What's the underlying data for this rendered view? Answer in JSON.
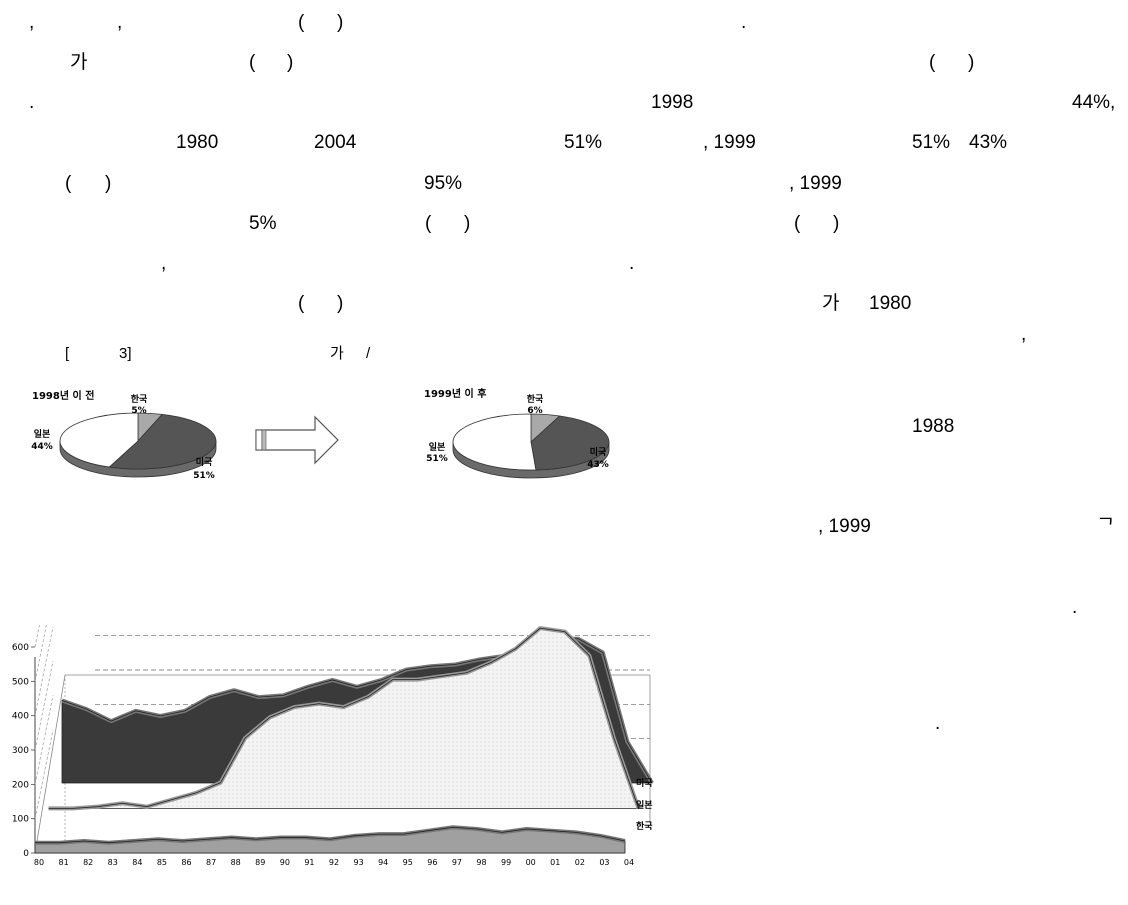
{
  "lines": [
    [
      ",",
      ",",
      "(",
      ")",
      "."
    ],
    [
      "가",
      "(",
      ")",
      "(",
      ")"
    ],
    [
      ".",
      "1998",
      "44%,"
    ],
    [
      "1980",
      "2004",
      "51%",
      ", 1999",
      "51%",
      "43%"
    ],
    [
      "(",
      ")",
      "95%",
      ", 1999"
    ],
    [
      "5%",
      "(",
      ")",
      "(",
      ")"
    ],
    [
      ",",
      "."
    ],
    [
      "(",
      ")",
      "가",
      "1980"
    ],
    [
      "[",
      "3]",
      "가",
      "/",
      ","
    ]
  ],
  "side_text": [
    "1988",
    ", 1999",
    "ᄀ",
    ".",
    "."
  ],
  "pie_before": {
    "title": "1998년 이 전",
    "slices": [
      {
        "label": "한국",
        "pct": "5%",
        "value": 5,
        "color": "#a9a9a9"
      },
      {
        "label": "미국",
        "pct": "51%",
        "value": 51,
        "color": "#555555"
      },
      {
        "label": "일본",
        "pct": "44%",
        "value": 44,
        "color": "#ffffff"
      }
    ]
  },
  "pie_after": {
    "title": "1999년 이 후",
    "slices": [
      {
        "label": "한국",
        "pct": "6%",
        "value": 6,
        "color": "#a9a9a9"
      },
      {
        "label": "미국",
        "pct": "43%",
        "value": 43,
        "color": "#555555"
      },
      {
        "label": "일본",
        "pct": "51%",
        "value": 51,
        "color": "#ffffff"
      }
    ]
  },
  "chart_data": [
    {
      "type": "pie",
      "title": "1998년 이 전",
      "categories": [
        "한국",
        "미국",
        "일본"
      ],
      "values": [
        5,
        51,
        44
      ]
    },
    {
      "type": "pie",
      "title": "1999년 이 후",
      "categories": [
        "한국",
        "미국",
        "일본"
      ],
      "values": [
        6,
        43,
        51
      ]
    },
    {
      "type": "area",
      "x": [
        "80",
        "81",
        "82",
        "83",
        "84",
        "85",
        "86",
        "87",
        "88",
        "89",
        "90",
        "91",
        "92",
        "93",
        "94",
        "95",
        "96",
        "97",
        "98",
        "99",
        "00",
        "01",
        "02",
        "03",
        "04"
      ],
      "ylim": [
        0,
        600
      ],
      "yticks": [
        0,
        100,
        200,
        300,
        400,
        500,
        600
      ],
      "series": [
        {
          "name": "미국",
          "values": [
            380,
            355,
            320,
            350,
            335,
            350,
            390,
            410,
            390,
            395,
            420,
            440,
            420,
            440,
            470,
            480,
            485,
            500,
            510,
            520,
            560,
            560,
            520,
            260,
            70
          ]
        },
        {
          "name": "일본",
          "values": [
            80,
            90,
            100,
            110,
            100,
            120,
            140,
            170,
            300,
            360,
            390,
            400,
            390,
            420,
            470,
            470,
            480,
            490,
            520,
            560,
            620,
            610,
            540,
            300,
            60
          ]
        },
        {
          "name": "한국",
          "values": [
            30,
            30,
            35,
            30,
            35,
            40,
            35,
            40,
            45,
            40,
            45,
            45,
            40,
            50,
            55,
            55,
            65,
            75,
            70,
            60,
            70,
            65,
            60,
            50,
            35
          ]
        }
      ],
      "colors": [
        "#3a3a3a",
        "#f2f2f2",
        "#a0a0a0"
      ],
      "grid": true
    }
  ]
}
